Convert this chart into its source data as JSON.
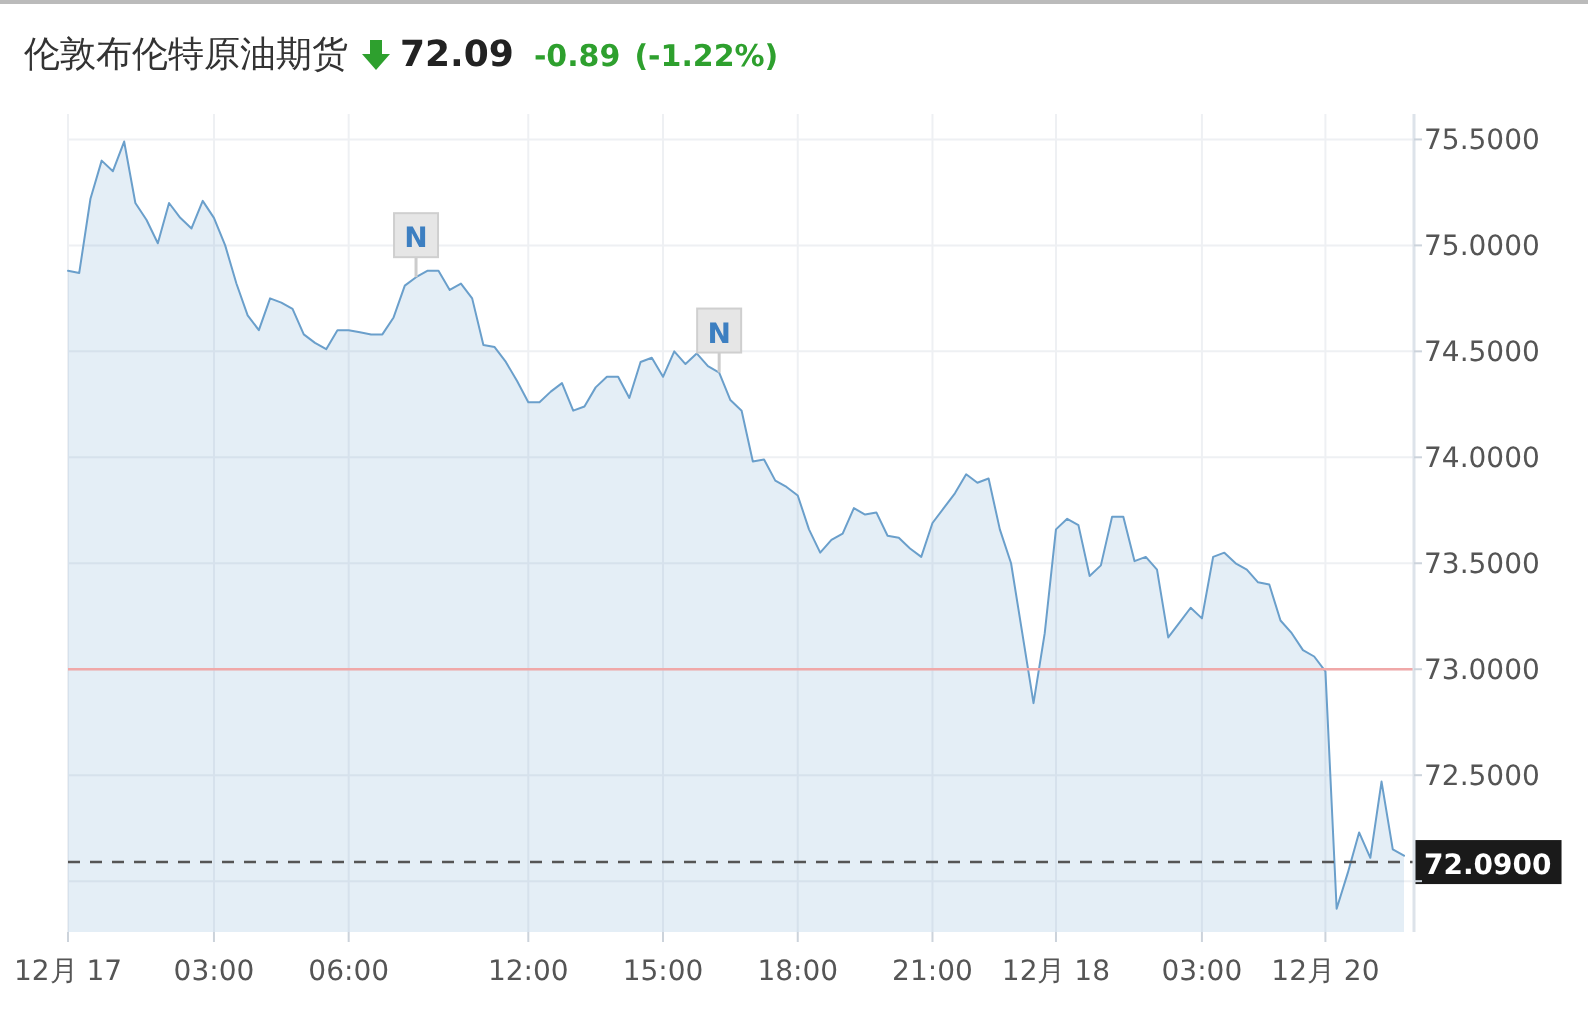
{
  "chart_data": {
    "type": "area",
    "title": "伦敦布伦特原油期货",
    "annotations": [
      "72.09",
      "-0.89",
      "(-1.22%)",
      {
        "text": "N",
        "y": 74.85
      },
      {
        "text": "N",
        "y": 74.4
      }
    ],
    "categories": [
      "12月 17",
      null,
      null,
      null,
      null,
      null,
      null,
      null,
      null,
      null,
      null,
      null,
      null,
      "03:00",
      null,
      null,
      null,
      null,
      null,
      null,
      null,
      null,
      null,
      null,
      null,
      "06:00",
      null,
      null,
      null,
      null,
      null,
      null,
      null,
      null,
      null,
      null,
      null,
      null,
      null,
      null,
      null,
      "12:00",
      null,
      null,
      null,
      null,
      null,
      null,
      null,
      null,
      null,
      null,
      null,
      "15:00",
      null,
      null,
      null,
      null,
      null,
      null,
      null,
      null,
      null,
      null,
      null,
      "18:00",
      null,
      null,
      null,
      null,
      null,
      null,
      null,
      null,
      null,
      null,
      null,
      "21:00",
      null,
      null,
      null,
      null,
      null,
      null,
      null,
      null,
      null,
      null,
      "12月 18",
      null,
      null,
      null,
      null,
      null,
      null,
      null,
      null,
      null,
      null,
      null,
      null,
      "03:00",
      null,
      null,
      null,
      null,
      null,
      null,
      null,
      null,
      null,
      null,
      "12月 20",
      null,
      null,
      null,
      null,
      null,
      null,
      null
    ],
    "series": [
      {
        "color": "#6a9fcb",
        "values": [
          74.88,
          74.87,
          75.22,
          75.4,
          75.35,
          75.49,
          75.2,
          75.12,
          75.01,
          75.2,
          75.13,
          75.08,
          75.21,
          75.13,
          75.0,
          74.82,
          74.67,
          74.6,
          74.75,
          74.73,
          74.7,
          74.58,
          74.54,
          74.51,
          74.6,
          74.6,
          74.59,
          74.58,
          74.58,
          74.66,
          74.81,
          74.85,
          74.88,
          74.88,
          74.79,
          74.82,
          74.75,
          74.53,
          74.52,
          74.45,
          74.36,
          74.26,
          74.26,
          74.31,
          74.35,
          74.22,
          74.24,
          74.33,
          74.38,
          74.38,
          74.28,
          74.45,
          74.47,
          74.38,
          74.5,
          74.44,
          74.49,
          74.43,
          74.4,
          74.27,
          74.22,
          73.98,
          73.99,
          73.89,
          73.86,
          73.82,
          73.66,
          73.55,
          73.61,
          73.64,
          73.76,
          73.73,
          73.74,
          73.63,
          73.62,
          73.57,
          73.53,
          73.69,
          73.76,
          73.83,
          73.92,
          73.88,
          73.9,
          73.66,
          73.5,
          73.17,
          72.84,
          73.17,
          73.66,
          73.71,
          73.68,
          73.44,
          73.49,
          73.72,
          73.72,
          73.51,
          73.53,
          73.47,
          73.15,
          73.22,
          73.29,
          73.24,
          73.53,
          73.55,
          73.5,
          73.47,
          73.41,
          73.4,
          73.23,
          73.17,
          73.09,
          73.06,
          72.99,
          71.87,
          72.04,
          72.23,
          72.11,
          72.47,
          72.15,
          72.12
        ]
      }
    ],
    "ylim": [
      71.76,
      75.62
    ],
    "yticks": [
      {
        "value": 72,
        "label": null
      },
      {
        "value": 72.5,
        "label": "72.5000"
      },
      {
        "value": 73,
        "label": "73.0000"
      },
      {
        "value": 73.5,
        "label": "73.5000"
      },
      {
        "value": 74,
        "label": "74.0000"
      },
      {
        "value": 74.5,
        "label": "74.5000"
      },
      {
        "value": 75,
        "label": "75.0000"
      },
      {
        "value": 75.5,
        "label": "75.5000"
      }
    ],
    "ref_lines": [
      {
        "axis": "y",
        "value": 73,
        "color": "#f0a8a8",
        "line_style": "solid"
      },
      {
        "axis": "y",
        "value": 72.09,
        "label": "72.0900",
        "color": "#555555",
        "line_style": "dashed"
      }
    ],
    "grid": true
  }
}
